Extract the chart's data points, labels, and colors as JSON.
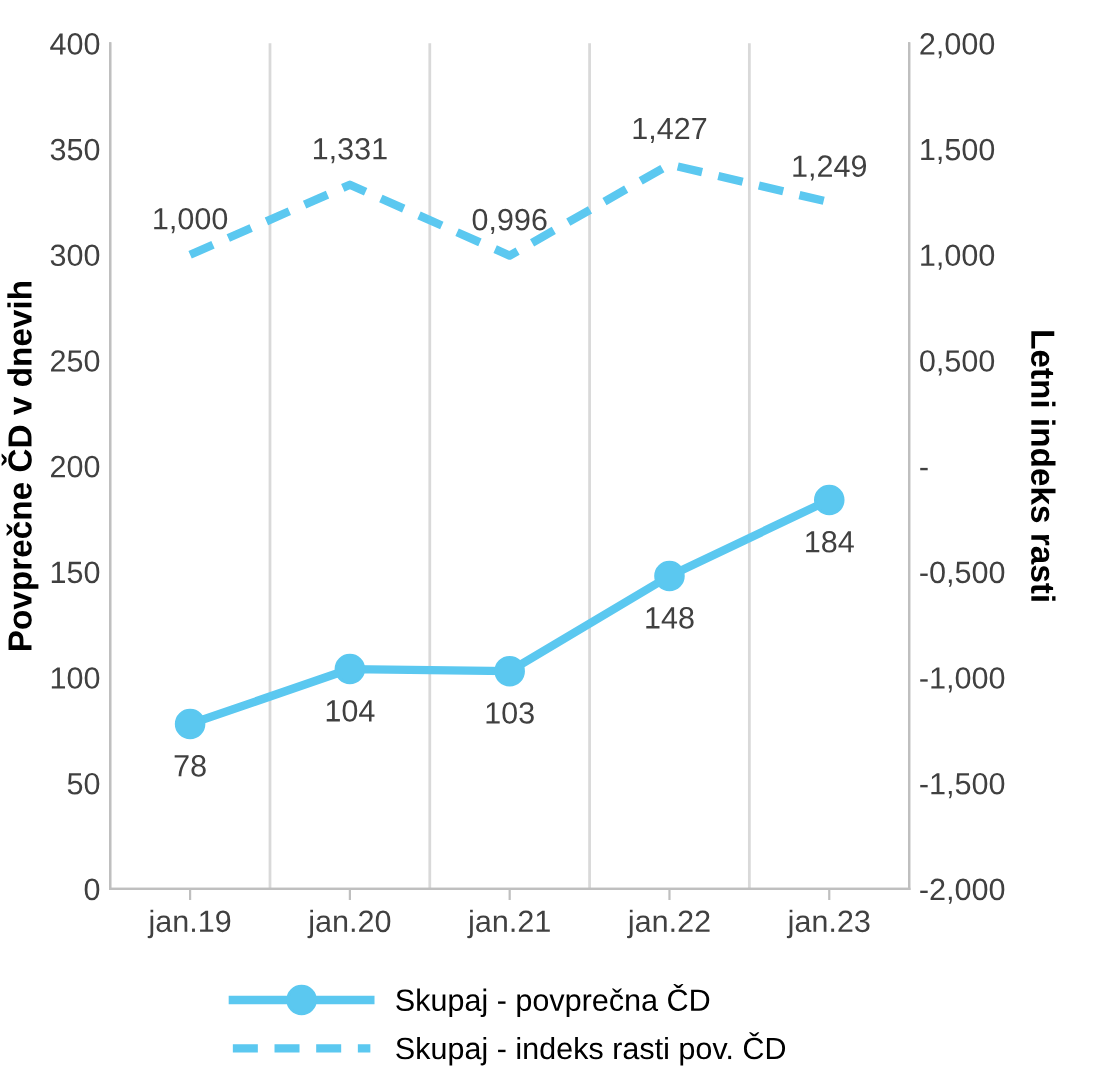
{
  "chart_data": {
    "type": "line",
    "ylabel": "Povprečne ČD v dnevih",
    "y2label": "Letni indeks rasti",
    "categories": [
      "jan.19",
      "jan.20",
      "jan.21",
      "jan.22",
      "jan.23"
    ],
    "series": [
      {
        "name": "Skupaj - povprečna ČD",
        "color": "#5bc8f0",
        "values": [
          78,
          104,
          103,
          148,
          184
        ],
        "value_labels": [
          "78",
          "104",
          "103",
          "148",
          "184"
        ],
        "marker": "circle",
        "line_style": "solid"
      },
      {
        "name": "Skupaj - indeks rasti pov. ČD",
        "color": "#5bc8f0",
        "axis": "y2",
        "values": [
          1.0,
          1.331,
          0.996,
          1.427,
          1.249
        ],
        "value_labels": [
          "1,000",
          "1,331",
          "0,996",
          "1,427",
          "1,249"
        ],
        "marker": "none",
        "line_style": "dashed"
      }
    ],
    "ylim": [
      0,
      400
    ],
    "yticks": [
      0,
      50,
      100,
      150,
      200,
      250,
      300,
      350,
      400
    ],
    "y2lim": [
      -2,
      2
    ],
    "y2ticks": [
      {
        "value": -2,
        "label": "-2,000"
      },
      {
        "value": -1.5,
        "label": "-1,500"
      },
      {
        "value": -1,
        "label": "-1,000"
      },
      {
        "value": -0.5,
        "label": "-0,500"
      },
      {
        "value": 0,
        "label": "-"
      },
      {
        "value": 0.5,
        "label": "0,500"
      },
      {
        "value": 1,
        "label": "1,000"
      },
      {
        "value": 1.5,
        "label": "1,500"
      },
      {
        "value": 2,
        "label": "2,000"
      }
    ],
    "grid": "x",
    "legend": "bottom"
  }
}
